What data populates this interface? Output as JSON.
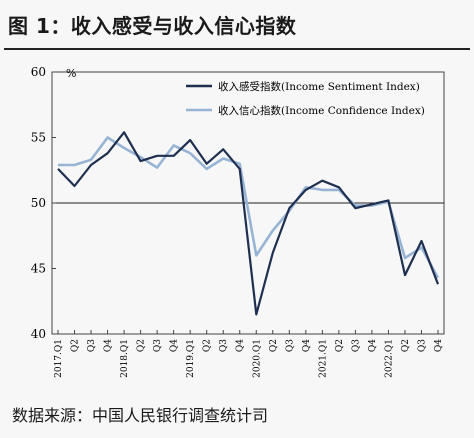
{
  "title": "图 1：收入感受与收入信心指数",
  "source": "数据来源：中国人民银行调查统计司",
  "chart_data": {
    "type": "line",
    "ylabel": "%",
    "ylim": [
      40,
      60
    ],
    "yticks": [
      40,
      45,
      50,
      55,
      60
    ],
    "reference_line": 50,
    "legend_position": "top-right",
    "categories": [
      "2017.Q1",
      "Q2",
      "Q3",
      "Q4",
      "2018.Q1",
      "Q2",
      "Q3",
      "Q4",
      "2019.Q1",
      "Q2",
      "Q3",
      "Q4",
      "2020.Q1",
      "Q2",
      "Q3",
      "Q4",
      "2021.Q1",
      "Q2",
      "Q3",
      "Q4",
      "2022.Q1",
      "Q2",
      "Q3",
      "Q4"
    ],
    "series": [
      {
        "name": "收入感受指数(Income Sentiment Index)",
        "color": "#1f2f4f",
        "values": [
          52.6,
          51.3,
          52.9,
          53.8,
          55.4,
          53.2,
          53.6,
          53.6,
          54.8,
          53.0,
          54.1,
          52.6,
          41.5,
          46.2,
          49.6,
          51.0,
          51.7,
          51.2,
          49.6,
          49.9,
          50.2,
          44.5,
          47.1,
          43.8
        ]
      },
      {
        "name": "收入信心指数(Income Confidence Index)",
        "color": "#98b4d4",
        "values": [
          52.9,
          52.9,
          53.3,
          55.0,
          54.2,
          53.5,
          52.7,
          54.4,
          53.8,
          52.6,
          53.4,
          53.0,
          46.0,
          47.9,
          49.4,
          51.2,
          51.0,
          51.0,
          49.8,
          49.8,
          50.1,
          45.8,
          46.6,
          44.3
        ]
      }
    ]
  }
}
